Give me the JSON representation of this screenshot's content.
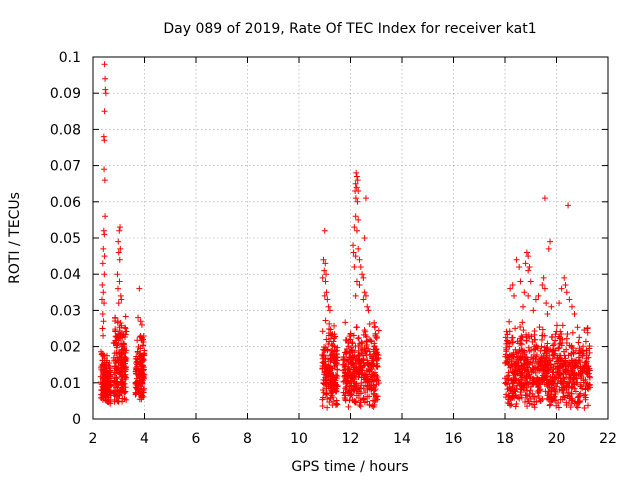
{
  "chart_data": {
    "type": "scatter",
    "title": "Day 089 of 2019, Rate Of TEC Index for receiver kat1",
    "xlabel": "GPS time / hours",
    "ylabel": "ROTI / TECUs",
    "xlim": [
      2,
      22
    ],
    "ylim": [
      0,
      0.1
    ],
    "x_ticks": [
      2,
      4,
      6,
      8,
      10,
      12,
      14,
      16,
      18,
      20,
      22
    ],
    "y_ticks": [
      0,
      0.01,
      0.02,
      0.03,
      0.04,
      0.05,
      0.06,
      0.07,
      0.08,
      0.09,
      0.1
    ],
    "x_tick_labels": [
      "2",
      "4",
      "6",
      "8",
      "10",
      "12",
      "14",
      "16",
      "18",
      "20",
      "22"
    ],
    "y_tick_labels": [
      "0",
      "0.01",
      "0.02",
      "0.03",
      "0.04",
      "0.05",
      "0.06",
      "0.07",
      "0.08",
      "0.09",
      "0.1"
    ],
    "grid": true,
    "marker": "+",
    "marker_color": "#ff0000",
    "series": [
      {
        "name": "kat1",
        "clusters": [
          {
            "x_range": [
              2.3,
              2.7
            ],
            "y_range": [
              0.004,
              0.02
            ],
            "n": 160
          },
          {
            "x_range": [
              2.8,
              3.3
            ],
            "y_range": [
              0.004,
              0.031
            ],
            "n": 200
          },
          {
            "x_range": [
              3.65,
              4.0
            ],
            "y_range": [
              0.005,
              0.025
            ],
            "n": 140
          },
          {
            "x_range": [
              10.9,
              11.5
            ],
            "y_range": [
              0.003,
              0.028
            ],
            "n": 200
          },
          {
            "x_range": [
              11.7,
              13.1
            ],
            "y_range": [
              0.003,
              0.028
            ],
            "n": 380
          },
          {
            "x_range": [
              18.0,
              21.3
            ],
            "y_range": [
              0.003,
              0.027
            ],
            "n": 800
          }
        ],
        "points": [
          {
            "x": 2.45,
            "y": 0.098
          },
          {
            "x": 2.47,
            "y": 0.094
          },
          {
            "x": 2.48,
            "y": 0.091
          },
          {
            "x": 2.5,
            "y": 0.09
          },
          {
            "x": 2.45,
            "y": 0.085
          },
          {
            "x": 2.42,
            "y": 0.078
          },
          {
            "x": 2.44,
            "y": 0.077
          },
          {
            "x": 2.43,
            "y": 0.069
          },
          {
            "x": 2.46,
            "y": 0.066
          },
          {
            "x": 2.47,
            "y": 0.056
          },
          {
            "x": 2.42,
            "y": 0.052
          },
          {
            "x": 2.44,
            "y": 0.051
          },
          {
            "x": 2.4,
            "y": 0.047
          },
          {
            "x": 2.45,
            "y": 0.045
          },
          {
            "x": 2.38,
            "y": 0.043
          },
          {
            "x": 2.44,
            "y": 0.04
          },
          {
            "x": 2.36,
            "y": 0.037
          },
          {
            "x": 2.4,
            "y": 0.035
          },
          {
            "x": 2.35,
            "y": 0.033
          },
          {
            "x": 2.43,
            "y": 0.032
          },
          {
            "x": 2.38,
            "y": 0.029
          },
          {
            "x": 2.41,
            "y": 0.027
          },
          {
            "x": 2.37,
            "y": 0.025
          },
          {
            "x": 2.39,
            "y": 0.023
          },
          {
            "x": 3.05,
            "y": 0.053
          },
          {
            "x": 3.02,
            "y": 0.052
          },
          {
            "x": 2.98,
            "y": 0.049
          },
          {
            "x": 3.06,
            "y": 0.047
          },
          {
            "x": 3.0,
            "y": 0.046
          },
          {
            "x": 3.04,
            "y": 0.044
          },
          {
            "x": 2.95,
            "y": 0.04
          },
          {
            "x": 3.03,
            "y": 0.038
          },
          {
            "x": 2.97,
            "y": 0.036
          },
          {
            "x": 3.08,
            "y": 0.034
          },
          {
            "x": 3.1,
            "y": 0.033
          },
          {
            "x": 3.0,
            "y": 0.032
          },
          {
            "x": 3.8,
            "y": 0.036
          },
          {
            "x": 3.75,
            "y": 0.028
          },
          {
            "x": 3.85,
            "y": 0.027
          },
          {
            "x": 3.9,
            "y": 0.026
          },
          {
            "x": 11.0,
            "y": 0.052
          },
          {
            "x": 10.95,
            "y": 0.044
          },
          {
            "x": 11.02,
            "y": 0.043
          },
          {
            "x": 10.98,
            "y": 0.041
          },
          {
            "x": 11.05,
            "y": 0.04
          },
          {
            "x": 10.92,
            "y": 0.039
          },
          {
            "x": 11.03,
            "y": 0.038
          },
          {
            "x": 11.07,
            "y": 0.035
          },
          {
            "x": 11.0,
            "y": 0.034
          },
          {
            "x": 11.1,
            "y": 0.033
          },
          {
            "x": 11.15,
            "y": 0.031
          },
          {
            "x": 11.2,
            "y": 0.03
          },
          {
            "x": 12.22,
            "y": 0.068
          },
          {
            "x": 12.25,
            "y": 0.067
          },
          {
            "x": 12.28,
            "y": 0.066
          },
          {
            "x": 12.2,
            "y": 0.065
          },
          {
            "x": 12.24,
            "y": 0.064
          },
          {
            "x": 12.18,
            "y": 0.063
          },
          {
            "x": 12.3,
            "y": 0.063
          },
          {
            "x": 12.21,
            "y": 0.061
          },
          {
            "x": 12.27,
            "y": 0.06
          },
          {
            "x": 12.6,
            "y": 0.061
          },
          {
            "x": 12.2,
            "y": 0.056
          },
          {
            "x": 12.3,
            "y": 0.055
          },
          {
            "x": 12.15,
            "y": 0.053
          },
          {
            "x": 12.25,
            "y": 0.052
          },
          {
            "x": 12.55,
            "y": 0.05
          },
          {
            "x": 12.1,
            "y": 0.048
          },
          {
            "x": 12.3,
            "y": 0.047
          },
          {
            "x": 12.12,
            "y": 0.046
          },
          {
            "x": 12.2,
            "y": 0.045
          },
          {
            "x": 12.35,
            "y": 0.044
          },
          {
            "x": 12.4,
            "y": 0.042
          },
          {
            "x": 12.15,
            "y": 0.042
          },
          {
            "x": 12.45,
            "y": 0.04
          },
          {
            "x": 12.5,
            "y": 0.039
          },
          {
            "x": 12.25,
            "y": 0.038
          },
          {
            "x": 12.35,
            "y": 0.037
          },
          {
            "x": 12.55,
            "y": 0.035
          },
          {
            "x": 12.6,
            "y": 0.034
          },
          {
            "x": 12.2,
            "y": 0.034
          },
          {
            "x": 12.5,
            "y": 0.033
          },
          {
            "x": 12.65,
            "y": 0.031
          },
          {
            "x": 12.7,
            "y": 0.03
          },
          {
            "x": 18.45,
            "y": 0.044
          },
          {
            "x": 18.55,
            "y": 0.042
          },
          {
            "x": 18.85,
            "y": 0.046
          },
          {
            "x": 18.9,
            "y": 0.045
          },
          {
            "x": 18.8,
            "y": 0.043
          },
          {
            "x": 18.95,
            "y": 0.042
          },
          {
            "x": 18.9,
            "y": 0.041
          },
          {
            "x": 18.3,
            "y": 0.037
          },
          {
            "x": 18.6,
            "y": 0.038
          },
          {
            "x": 19.0,
            "y": 0.038
          },
          {
            "x": 18.2,
            "y": 0.036
          },
          {
            "x": 18.35,
            "y": 0.034
          },
          {
            "x": 18.75,
            "y": 0.035
          },
          {
            "x": 18.9,
            "y": 0.034
          },
          {
            "x": 19.2,
            "y": 0.033
          },
          {
            "x": 19.3,
            "y": 0.034
          },
          {
            "x": 19.45,
            "y": 0.037
          },
          {
            "x": 19.5,
            "y": 0.039
          },
          {
            "x": 19.55,
            "y": 0.036
          },
          {
            "x": 19.6,
            "y": 0.032
          },
          {
            "x": 19.55,
            "y": 0.061
          },
          {
            "x": 19.75,
            "y": 0.049
          },
          {
            "x": 19.7,
            "y": 0.047
          },
          {
            "x": 20.45,
            "y": 0.059
          },
          {
            "x": 20.3,
            "y": 0.039
          },
          {
            "x": 20.35,
            "y": 0.037
          },
          {
            "x": 20.2,
            "y": 0.036
          },
          {
            "x": 20.4,
            "y": 0.035
          },
          {
            "x": 20.5,
            "y": 0.033
          },
          {
            "x": 20.1,
            "y": 0.032
          },
          {
            "x": 20.6,
            "y": 0.031
          },
          {
            "x": 20.7,
            "y": 0.029
          },
          {
            "x": 19.8,
            "y": 0.031
          },
          {
            "x": 19.65,
            "y": 0.029
          },
          {
            "x": 19.1,
            "y": 0.03
          },
          {
            "x": 18.7,
            "y": 0.031
          }
        ]
      }
    ]
  }
}
